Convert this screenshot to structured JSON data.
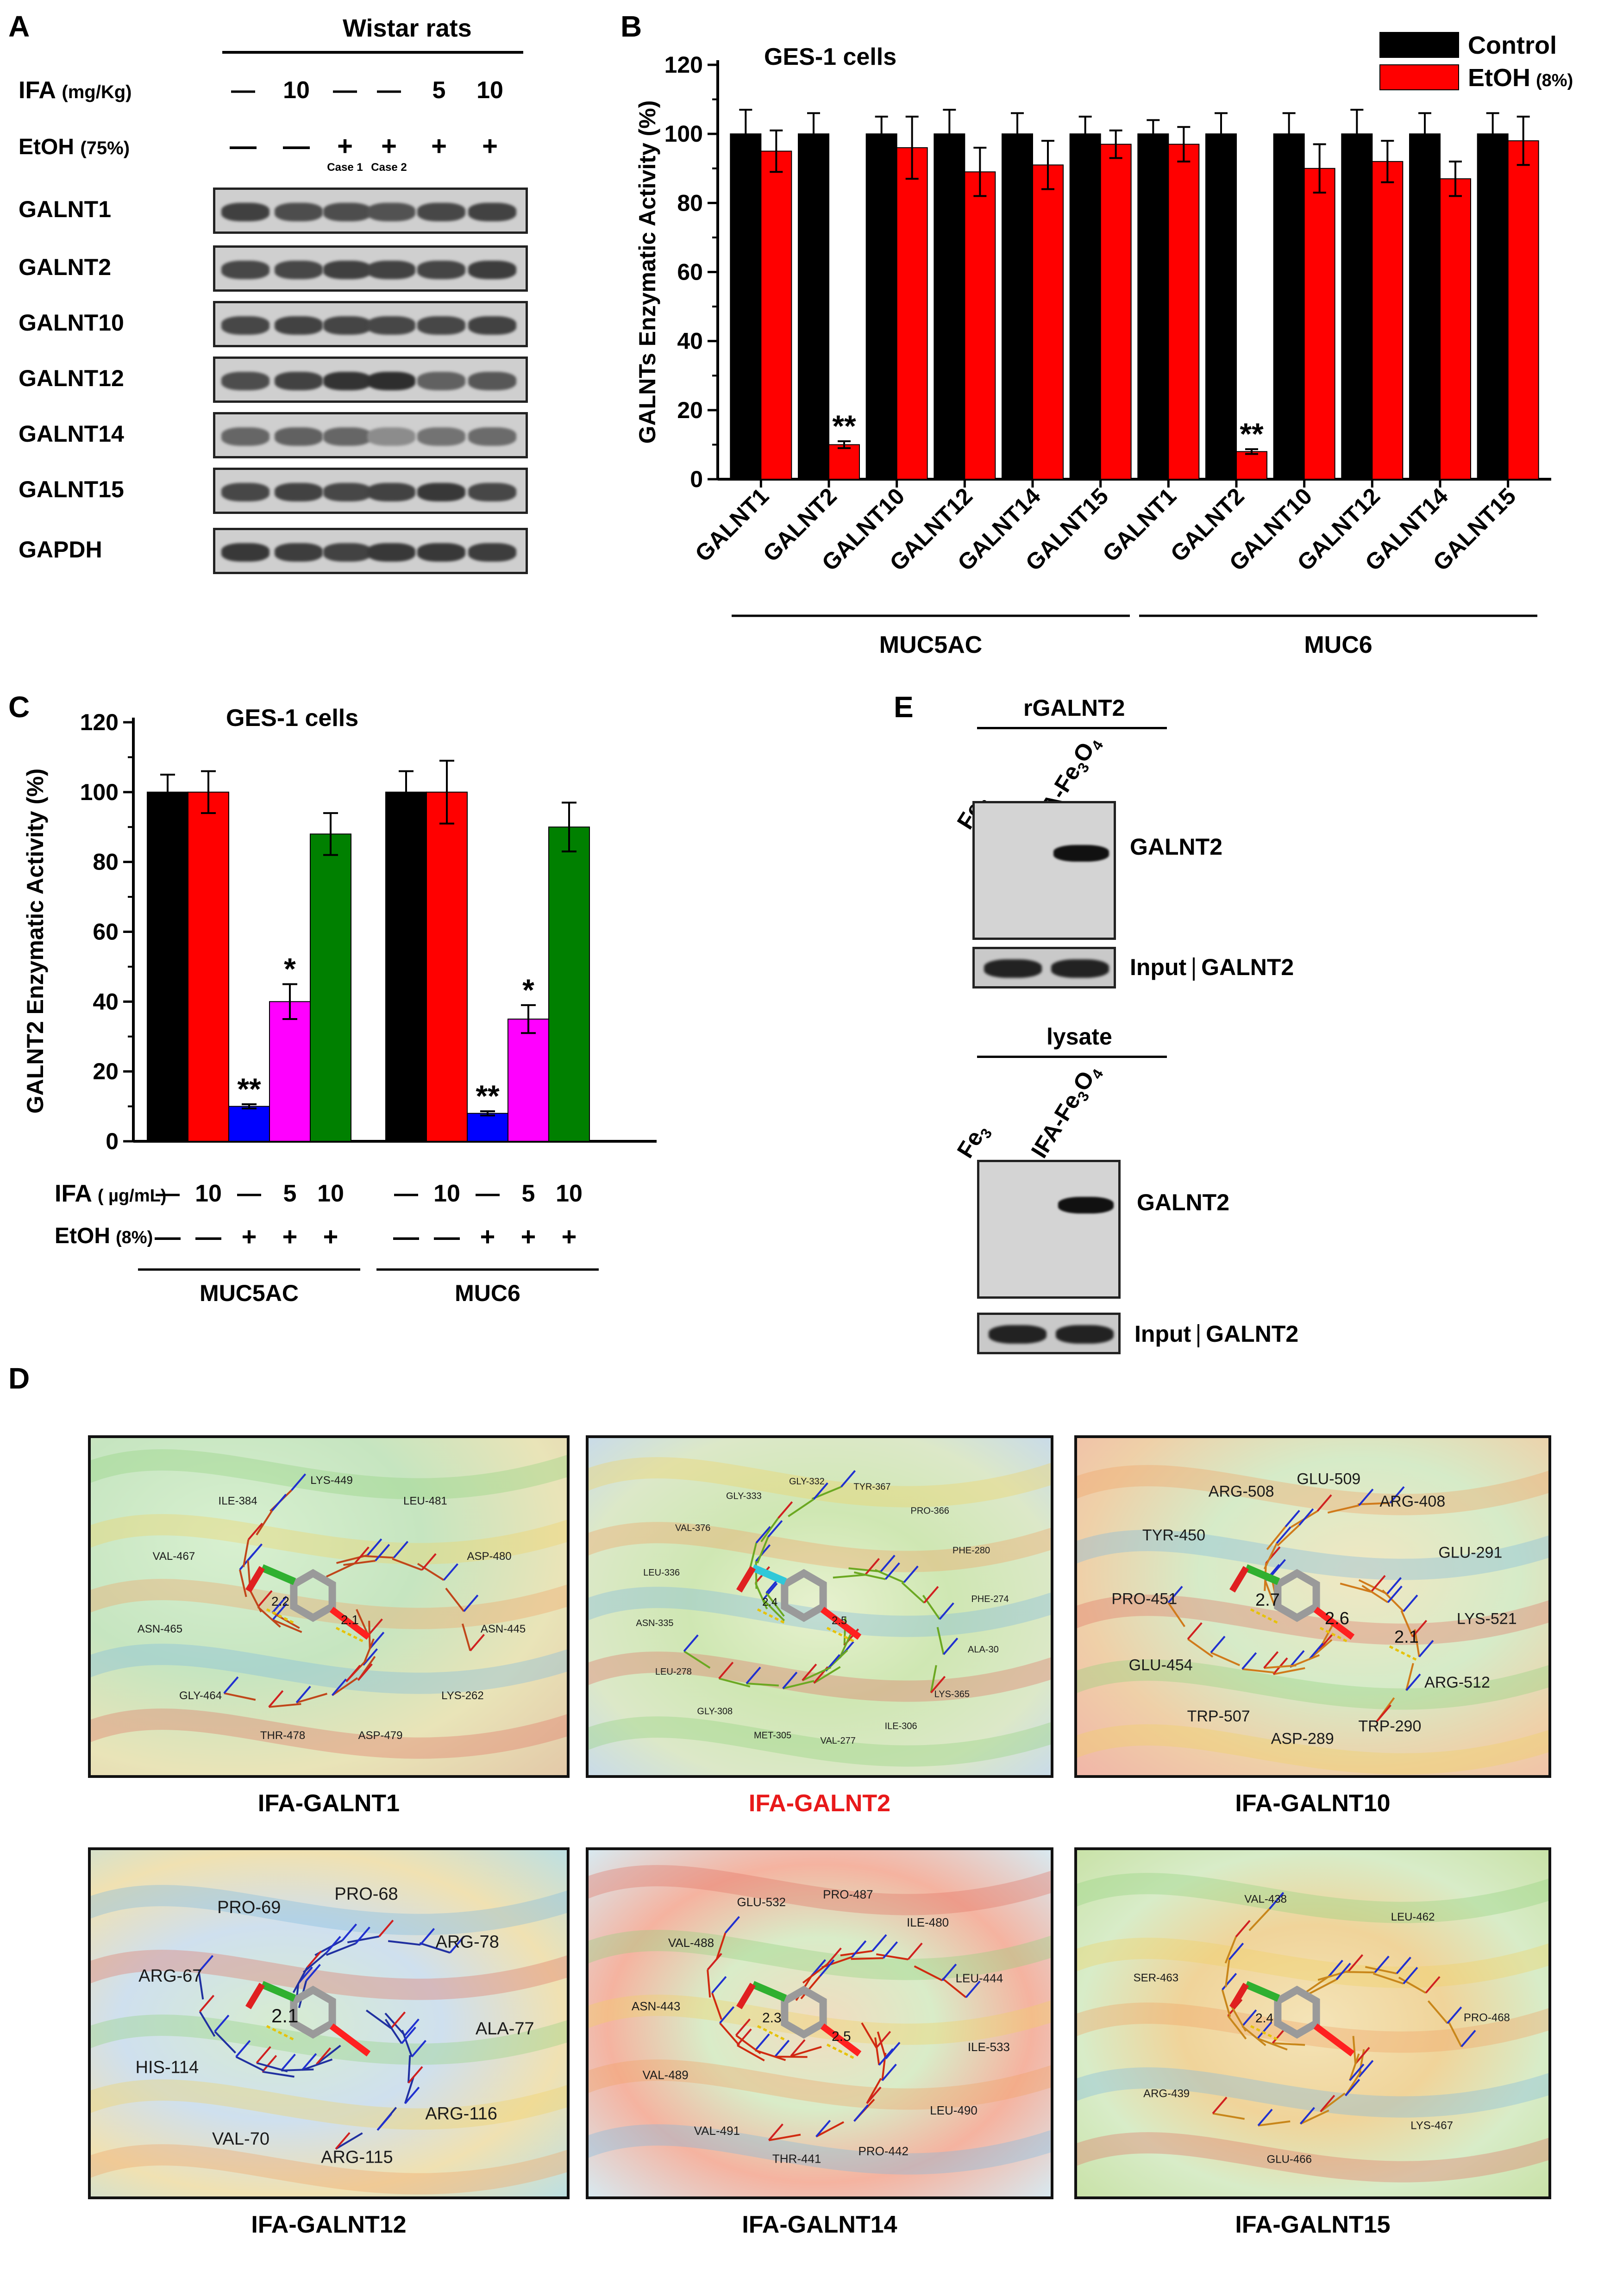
{
  "panels": {
    "a": "A",
    "b": "B",
    "c": "C",
    "d": "D",
    "e": "E"
  },
  "panel_a": {
    "group_title": "Wistar rats",
    "ifa_label": "IFA",
    "ifa_unit": "(mg/Kg)",
    "etoh_label": "EtOH",
    "etoh_unit": "(75%)",
    "ifa_values": [
      "—",
      "10",
      "—",
      "—",
      "5",
      "10"
    ],
    "etoh_values": [
      "—",
      "—",
      "+",
      "+",
      "+",
      "+"
    ],
    "case_labels": [
      "Case 1",
      "Case 2"
    ],
    "blots": [
      {
        "name": "GALNT1",
        "intensities": [
          0.75,
          0.7,
          0.7,
          0.68,
          0.72,
          0.74
        ]
      },
      {
        "name": "GALNT2",
        "intensities": [
          0.72,
          0.72,
          0.75,
          0.74,
          0.73,
          0.76
        ]
      },
      {
        "name": "GALNT10",
        "intensities": [
          0.72,
          0.74,
          0.73,
          0.72,
          0.72,
          0.74
        ]
      },
      {
        "name": "GALNT12",
        "intensities": [
          0.7,
          0.74,
          0.8,
          0.82,
          0.62,
          0.66
        ]
      },
      {
        "name": "GALNT14",
        "intensities": [
          0.6,
          0.62,
          0.6,
          0.45,
          0.55,
          0.58
        ]
      },
      {
        "name": "GALNT15",
        "intensities": [
          0.72,
          0.74,
          0.72,
          0.74,
          0.78,
          0.72
        ]
      },
      {
        "name": "GAPDH",
        "intensities": [
          0.78,
          0.76,
          0.74,
          0.78,
          0.78,
          0.76
        ]
      }
    ]
  },
  "chart_data": [
    {
      "id": "B",
      "type": "bar",
      "title": "GES-1 cells",
      "ylabel": "GALNTs Enzymatic Activity (%)",
      "xlabel": "",
      "ylim": [
        0,
        120
      ],
      "yticks": [
        0,
        20,
        40,
        60,
        80,
        100,
        120
      ],
      "categories": [
        "GALNT1",
        "GALNT2",
        "GALNT10",
        "GALNT12",
        "GALNT14",
        "GALNT15",
        "GALNT1",
        "GALNT2",
        "GALNT10",
        "GALNT12",
        "GALNT14",
        "GALNT15"
      ],
      "groups": [
        {
          "label": "MUC5AC",
          "from": 0,
          "to": 5
        },
        {
          "label": "MUC6",
          "from": 6,
          "to": 11
        }
      ],
      "legend_position": "top-right",
      "series": [
        {
          "name": "Control",
          "color": "#000000",
          "values": [
            100,
            100,
            100,
            100,
            100,
            100,
            100,
            100,
            100,
            100,
            100,
            100
          ],
          "errors": [
            7,
            6,
            5,
            7,
            6,
            5,
            4,
            6,
            6,
            7,
            6,
            6
          ]
        },
        {
          "name": "EtOH",
          "name_suffix": "(8%)",
          "color": "#ff0000",
          "values": [
            95,
            10,
            96,
            89,
            91,
            97,
            97,
            8,
            90,
            92,
            87,
            98
          ],
          "errors": [
            6,
            1,
            9,
            7,
            7,
            4,
            5,
            0.7,
            7,
            6,
            5,
            7
          ]
        }
      ],
      "annotations": [
        {
          "series": 1,
          "index": 1,
          "text": "**"
        },
        {
          "series": 1,
          "index": 7,
          "text": "**"
        }
      ]
    },
    {
      "id": "C",
      "type": "bar",
      "title": "GES-1 cells",
      "ylabel": "GALNT2 Enzymatic Activity (%)",
      "xlabel": "",
      "ylim": [
        0,
        120
      ],
      "yticks": [
        0,
        20,
        40,
        60,
        80,
        100,
        120
      ],
      "groups": [
        {
          "label": "MUC5AC",
          "values": [
            100,
            100,
            10,
            40,
            88
          ],
          "errors": [
            5,
            6,
            0.6,
            5,
            6
          ],
          "annotations": [
            "",
            "",
            "**",
            "*",
            ""
          ]
        },
        {
          "label": "MUC6",
          "values": [
            100,
            100,
            8,
            35,
            90
          ],
          "errors": [
            6,
            9,
            0.6,
            4,
            7
          ],
          "annotations": [
            "",
            "",
            "**",
            "*",
            ""
          ]
        }
      ],
      "bar_colors": [
        "#000000",
        "#ff0000",
        "#0000ff",
        "#ff00ff",
        "#008000"
      ],
      "ifa_label": "IFA",
      "ifa_unit": "( µg/mL)",
      "etoh_label": "EtOH",
      "etoh_unit": "(8%)",
      "ifa_values": [
        "—",
        "10",
        "—",
        "5",
        "10"
      ],
      "etoh_values": [
        "—",
        "—",
        "+",
        "+",
        "+"
      ]
    }
  ],
  "panel_e": {
    "top_title": "rGALNT2",
    "bottom_title": "lysate",
    "lane1": "Fe",
    "lane2": "IFA-Fe",
    "sub3": "3",
    "sub4": "4",
    "band_label": "GALNT2",
    "input_label": "Input",
    "input_target": "GALNT2"
  },
  "panel_d": {
    "captions": [
      "IFA-GALNT1",
      "IFA-GALNT2",
      "IFA-GALNT10",
      "IFA-GALNT12",
      "IFA-GALNT14",
      "IFA-GALNT15"
    ],
    "highlight_color": "#e8191a",
    "d1": {
      "labels": [
        "LYS-449",
        "LEU-481",
        "ASP-480",
        "ASN-445",
        "LYS-262",
        "ASP-479",
        "THR-478",
        "GLY-464",
        "ASN-465",
        "VAL-467",
        "ILE-384"
      ],
      "distances": [
        "2.2",
        "2.1"
      ]
    },
    "d2": {
      "labels": [
        "TYR-367",
        "PRO-366",
        "PHE-280",
        "PHE-274",
        "ALA-30",
        "LYS-365",
        "ILE-306",
        "VAL-277",
        "MET-305",
        "GLY-308",
        "LEU-278",
        "ASN-335",
        "LEU-336",
        "VAL-376",
        "GLY-333",
        "GLY-332"
      ],
      "distances": [
        "2.4",
        "2.5"
      ]
    },
    "d3": {
      "labels": [
        "ARG-408",
        "GLU-291",
        "LYS-521",
        "ARG-512",
        "TRP-290",
        "ASP-289",
        "TRP-507",
        "GLU-454",
        "PRO-451",
        "TYR-450",
        "ARG-508",
        "GLU-509"
      ],
      "distances": [
        "2.7",
        "2.6",
        "2.1"
      ]
    },
    "d4": {
      "labels": [
        "ARG-78",
        "ALA-77",
        "ARG-116",
        "ARG-115",
        "VAL-70",
        "HIS-114",
        "ARG-67",
        "PRO-69",
        "PRO-68"
      ],
      "distances": [
        "2.1"
      ]
    },
    "d5": {
      "labels": [
        "LEU-444",
        "ILE-533",
        "LEU-490",
        "PRO-442",
        "THR-441",
        "VAL-491",
        "VAL-489",
        "ASN-443",
        "VAL-488",
        "GLU-532",
        "PRO-487",
        "ILE-480"
      ],
      "distances": [
        "2.3",
        "2.5"
      ]
    },
    "d6": {
      "labels": [
        "PRO-468",
        "LYS-467",
        "GLU-466",
        "ARG-439",
        "SER-463",
        "VAL-438",
        "LEU-462"
      ],
      "distances": [
        "2.4"
      ]
    }
  }
}
